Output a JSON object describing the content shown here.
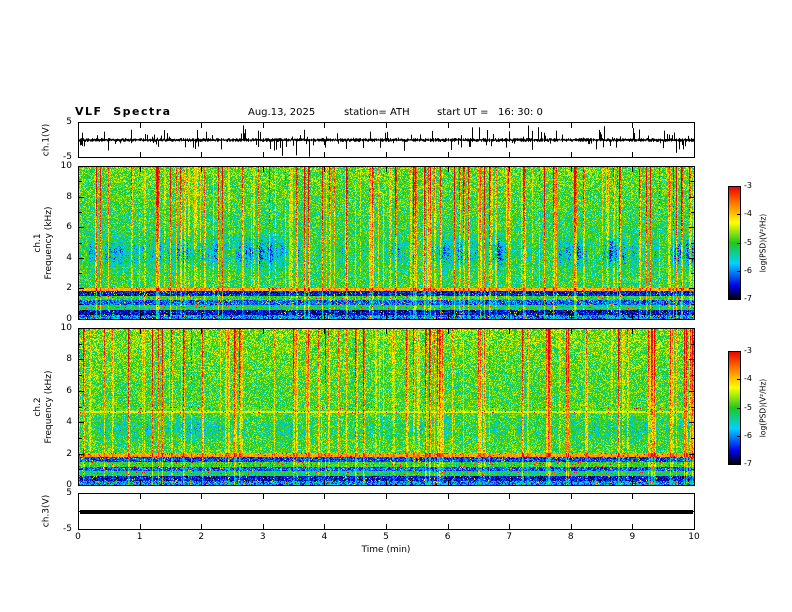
{
  "header": {
    "title": "VLF  Spectra",
    "date": "Aug.13, 2025",
    "station": "station= ATH",
    "start_ut": "start UT =   16: 30: 0"
  },
  "axis_labels": {
    "wave1": "ch.1(V)",
    "spec1": "ch.1\nFrequency (kHz)",
    "spec2": "ch.2\nFrequency (kHz)",
    "wave3": "ch.3(V)",
    "x": "Time (min)",
    "colorbar": "log(PSD)(V²/Hz)"
  },
  "ticks": {
    "x": [
      0,
      1,
      2,
      3,
      4,
      5,
      6,
      7,
      8,
      9,
      10
    ],
    "spec_y": [
      10,
      8,
      6,
      4,
      2,
      0
    ],
    "wave_y": [
      5,
      -5
    ],
    "colorbar": [
      -3,
      -4,
      -5,
      -6,
      -7
    ]
  },
  "chart_data": [
    {
      "type": "line",
      "name": "ch.1 voltage waveform",
      "panel": "wave1",
      "ylabel": "ch.1(V)",
      "ylim": [
        -5,
        5
      ],
      "xlim": [
        0,
        10
      ],
      "description": "Broadband noisy voltage trace centered on 0 V with dense impulsive spikes reaching about ±4 V across the whole 10 minute record",
      "render": {
        "seed": 101,
        "base_amp": 0.45,
        "spike_prob": 0.1,
        "spike_amp": 2.6,
        "big_spike_prob": 0.014,
        "big_spike_amp": 4.2
      }
    },
    {
      "type": "heatmap",
      "name": "ch.1 spectrogram",
      "panel": "spec1",
      "ylabel": "Frequency (kHz)",
      "ylim": [
        0,
        10
      ],
      "xlim": [
        0,
        10
      ],
      "value_label": "log(PSD)(V²/Hz)",
      "value_range": [
        -7,
        -3
      ],
      "colormap": "rainbow (black-blue-cyan-green-yellow-red)",
      "description": "Green/yellow broadband background with dense red vertical sferic streaks, diffuse dark-blue patches between 3 and 5.7 kHz, a bright red-orange horizontal line near 2 kHz and alternating dark/bright horizontal bands below 2 kHz",
      "render": {
        "seed": 202,
        "base": -5.05,
        "noise": 0.55,
        "top_boost": 0.35,
        "streaks": {
          "count": 120,
          "min": 0.5,
          "max": 2.3
        },
        "blue_band": {
          "f_lo": 3.0,
          "f_hi": 5.7,
          "depth": 1.5
        },
        "bands": [
          {
            "f_lo": 1.85,
            "f_hi": 2.06,
            "level": -3.9,
            "noise": 0.5
          },
          {
            "f_lo": 1.55,
            "f_hi": 1.85,
            "level": -6.5,
            "noise": 0.9
          },
          {
            "f_lo": 1.25,
            "f_hi": 1.55,
            "level": -5.0,
            "noise": 0.8
          },
          {
            "f_lo": 0.95,
            "f_hi": 1.25,
            "level": -6.2,
            "noise": 1.0
          },
          {
            "f_lo": 0.62,
            "f_hi": 0.95,
            "level": -5.2,
            "noise": 0.8
          },
          {
            "f_lo": 0.3,
            "f_hi": 0.62,
            "level": -6.6,
            "noise": 0.9
          },
          {
            "f_lo": 0.0,
            "f_hi": 0.3,
            "level": -6.1,
            "noise": 1.3
          }
        ]
      }
    },
    {
      "type": "heatmap",
      "name": "ch.2 spectrogram",
      "panel": "spec2",
      "ylabel": "Frequency (kHz)",
      "ylim": [
        0,
        10
      ],
      "xlim": [
        0,
        10
      ],
      "value_label": "log(PSD)(V²/Hz)",
      "value_range": [
        -7,
        -3
      ],
      "colormap": "rainbow (black-blue-cyan-green-yellow-red)",
      "description": "Similar to ch.1 but greener mid-band, faint orange horizontal lines near 4.7 and 4.95 kHz, bright yellow-orange line near 2 kHz and banded structure below 2 kHz",
      "render": {
        "seed": 303,
        "base": -4.95,
        "noise": 0.55,
        "top_boost": 0.3,
        "streaks": {
          "count": 110,
          "min": 0.5,
          "max": 2.2
        },
        "blue_band": {
          "f_lo": 2.6,
          "f_hi": 4.6,
          "depth": 0.7
        },
        "bands": [
          {
            "f_lo": 4.62,
            "f_hi": 4.75,
            "level": -4.4,
            "noise": 0.5
          },
          {
            "f_lo": 4.88,
            "f_hi": 5.0,
            "level": -4.8,
            "noise": 0.5
          },
          {
            "f_lo": 1.82,
            "f_hi": 2.08,
            "level": -3.8,
            "noise": 0.5
          },
          {
            "f_lo": 1.5,
            "f_hi": 1.82,
            "level": -6.3,
            "noise": 0.9
          },
          {
            "f_lo": 1.2,
            "f_hi": 1.5,
            "level": -5.0,
            "noise": 0.8
          },
          {
            "f_lo": 0.9,
            "f_hi": 1.2,
            "level": -6.2,
            "noise": 1.0
          },
          {
            "f_lo": 0.6,
            "f_hi": 0.9,
            "level": -5.2,
            "noise": 0.8
          },
          {
            "f_lo": 0.3,
            "f_hi": 0.6,
            "level": -6.5,
            "noise": 0.9
          },
          {
            "f_lo": 0.0,
            "f_hi": 0.3,
            "level": -6.0,
            "noise": 1.3
          }
        ]
      }
    },
    {
      "type": "line",
      "name": "ch.3 voltage waveform",
      "panel": "wave3",
      "ylabel": "ch.3(V)",
      "ylim": [
        -5,
        5
      ],
      "xlim": [
        0,
        10
      ],
      "xlabel": "Time (min)",
      "description": "Flat thick black line at a constant 0 V (no signal on channel 3)",
      "constant_value": 0
    }
  ]
}
